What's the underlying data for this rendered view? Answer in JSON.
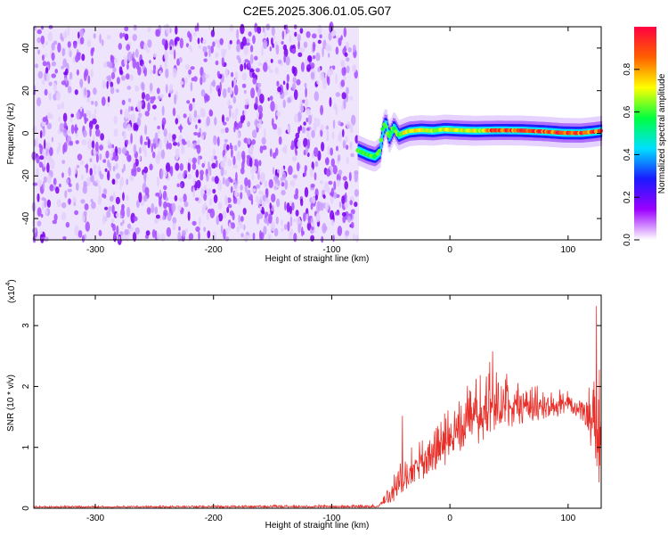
{
  "title": "C2E5.2025.306.01.05.G07",
  "chart_data": [
    {
      "type": "heatmap",
      "xlabel": "Height of straight line (km)",
      "ylabel": "Frequency (Hz)",
      "xlim": [
        -352,
        128
      ],
      "ylim": [
        -50,
        50
      ],
      "x_ticks": [
        -300,
        -200,
        -100,
        0,
        100
      ],
      "y_ticks": [
        -40,
        -20,
        0,
        20,
        40
      ],
      "colorbar": {
        "label": "Normalized spectral amplitude",
        "range": [
          0,
          1
        ],
        "ticks": [
          "0.0",
          "0.2",
          "0.4",
          "0.6",
          "0.8"
        ],
        "colors": [
          "#ffffff",
          "#9c00ff",
          "#1a1aff",
          "#00e0ff",
          "#00ff40",
          "#ffff00",
          "#ff6000",
          "#ff0040"
        ]
      },
      "noise_region_x": [
        -352,
        -77
      ],
      "signal_track": {
        "x": [
          -78,
          -70,
          -64,
          -60,
          -57,
          -55,
          -52,
          -48,
          -44,
          -40,
          -35,
          -25,
          -15,
          -5,
          5,
          20,
          40,
          60,
          80,
          95,
          110,
          120,
          128
        ],
        "y": [
          -8,
          -10,
          -11,
          -9,
          2,
          5,
          -2,
          3,
          -1,
          0,
          1,
          1.5,
          1.2,
          1.8,
          1.5,
          1.2,
          1.4,
          1.3,
          0.8,
          0.2,
          0.1,
          0.6,
          1.2
        ]
      }
    },
    {
      "type": "line",
      "xlabel": "Height of straight line (km)",
      "ylabel": "SNR (10 * v/v)",
      "y_multiplier": "(x10",
      "y_multiplier_exp": "4",
      "y_multiplier_close": ")",
      "xlim": [
        -352,
        128
      ],
      "ylim": [
        0,
        3.5
      ],
      "x_ticks": [
        -300,
        -200,
        -100,
        0,
        100
      ],
      "y_ticks": [
        0,
        1,
        2,
        3
      ],
      "color": "#e8302a",
      "envelope": {
        "x": [
          -352,
          -60,
          -55,
          -45,
          -40,
          -30,
          -20,
          -10,
          0,
          10,
          20,
          30,
          40,
          50,
          60,
          70,
          80,
          90,
          100,
          110,
          115,
          120,
          125,
          128
        ],
        "low": [
          0.01,
          0.01,
          0.05,
          0.1,
          0.2,
          0.35,
          0.5,
          0.6,
          0.75,
          0.9,
          1.0,
          1.1,
          1.2,
          1.3,
          1.35,
          1.4,
          1.45,
          1.5,
          1.5,
          1.45,
          1.3,
          0.9,
          0.3,
          0.3
        ],
        "high": [
          0.04,
          0.06,
          0.3,
          0.8,
          0.9,
          1.1,
          1.3,
          1.5,
          1.8,
          2.0,
          2.2,
          2.4,
          2.5,
          2.3,
          2.2,
          2.15,
          2.1,
          2.0,
          2.0,
          1.9,
          2.0,
          2.5,
          3.3,
          2.8
        ]
      },
      "spikes": [
        {
          "x": -40,
          "y": 1.52
        },
        {
          "x": 36,
          "y": 2.58
        },
        {
          "x": 124,
          "y": 3.32
        }
      ]
    }
  ]
}
